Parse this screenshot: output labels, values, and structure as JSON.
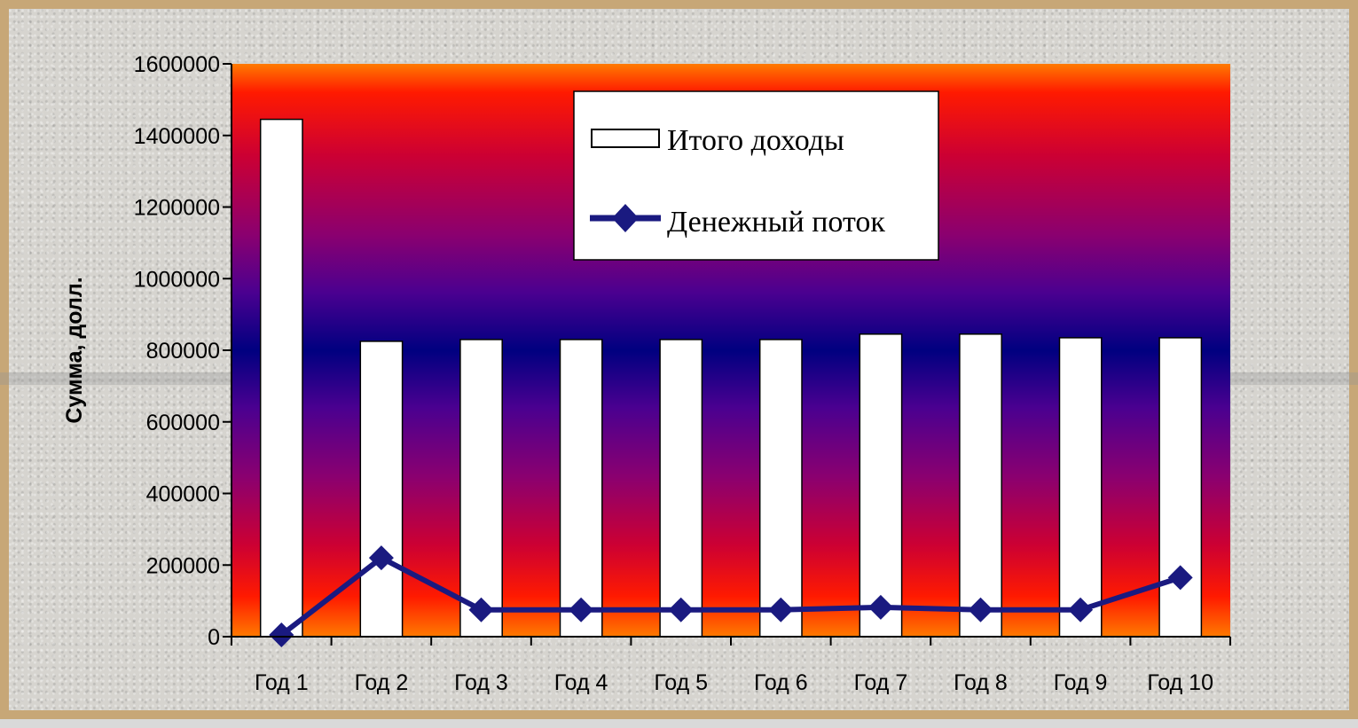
{
  "chart_data": {
    "type": "bar",
    "categories": [
      "Год 1",
      "Год 2",
      "Год 3",
      "Год 4",
      "Год 5",
      "Год 6",
      "Год 7",
      "Год 8",
      "Год 9",
      "Год 10"
    ],
    "series": [
      {
        "name": "Итого доходы",
        "kind": "bar",
        "color": "#ffffff",
        "values": [
          1445000,
          825000,
          830000,
          830000,
          830000,
          830000,
          845000,
          845000,
          835000,
          835000
        ]
      },
      {
        "name": "Денежный поток",
        "kind": "line",
        "marker": "diamond",
        "color": "#1a1a80",
        "values": [
          5000,
          220000,
          75000,
          75000,
          75000,
          75000,
          82000,
          75000,
          75000,
          165000
        ]
      }
    ],
    "ylabel": "Сумма, долл.",
    "xlabel": "",
    "ylim": [
      0,
      1600000
    ],
    "yticks": [
      "0",
      "200000",
      "400000",
      "600000",
      "800000",
      "1000000",
      "1200000",
      "1400000",
      "1600000"
    ],
    "legend_position": "top-right",
    "plot_background": "vertical gradient red-purple-blue-purple-red",
    "grid": false
  }
}
